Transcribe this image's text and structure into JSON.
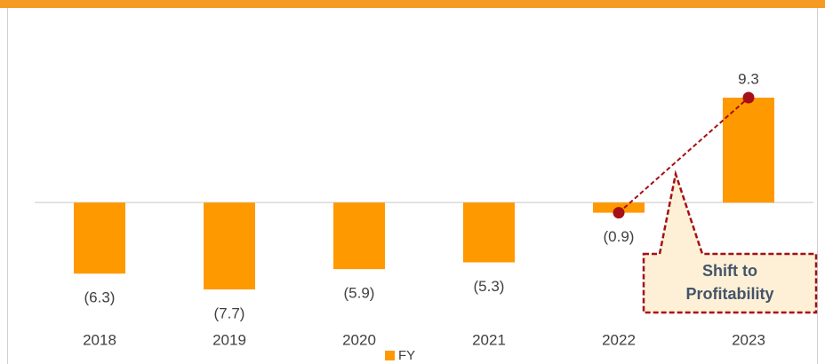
{
  "chart_data": {
    "type": "bar",
    "categories": [
      "2018",
      "2019",
      "2020",
      "2021",
      "2022",
      "2023"
    ],
    "series": [
      {
        "name": "FY",
        "color": "#ff9900",
        "values": [
          -6.3,
          -7.7,
          -5.9,
          -5.3,
          -0.9,
          9.3
        ],
        "value_labels": [
          "(6.3)",
          "(7.7)",
          "(5.9)",
          "(5.3)",
          "(0.9)",
          "9.3"
        ]
      }
    ],
    "annotation": [
      "Shift to",
      "Profitability"
    ],
    "annotation_color": "#a50f15",
    "legend": "bottom"
  }
}
